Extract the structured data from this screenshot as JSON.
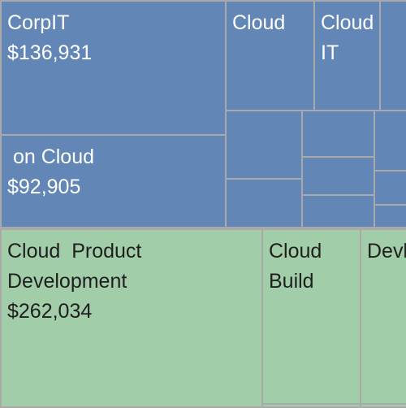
{
  "colors": {
    "it_group": "#6287b6",
    "product_group": "#a1cda8",
    "border": "#a9a9a9"
  },
  "chart_data": {
    "type": "treemap",
    "tiles": [
      {
        "id": "corp-it",
        "group": "it_group",
        "label": "CorpIT",
        "value_text": "$136,931",
        "value": 136931,
        "text_color": "light"
      },
      {
        "id": "on-cloud",
        "group": "it_group",
        "label": " on Cloud",
        "value_text": "$92,905",
        "value": 92905,
        "text_color": "light"
      },
      {
        "id": "cloud-1",
        "group": "it_group",
        "label": "Cloud",
        "value_text": "",
        "text_color": "light"
      },
      {
        "id": "cloud-it",
        "group": "it_group",
        "label": "Cloud\nIT",
        "value_text": "",
        "text_color": "light"
      },
      {
        "id": "it-small-1",
        "group": "it_group",
        "label": "",
        "value_text": ""
      },
      {
        "id": "it-small-2",
        "group": "it_group",
        "label": "",
        "value_text": ""
      },
      {
        "id": "it-small-3",
        "group": "it_group",
        "label": "",
        "value_text": ""
      },
      {
        "id": "it-small-4",
        "group": "it_group",
        "label": "",
        "value_text": ""
      },
      {
        "id": "it-small-5",
        "group": "it_group",
        "label": "",
        "value_text": ""
      },
      {
        "id": "it-small-6",
        "group": "it_group",
        "label": "",
        "value_text": ""
      },
      {
        "id": "it-small-7",
        "group": "it_group",
        "label": "",
        "value_text": ""
      },
      {
        "id": "it-small-8",
        "group": "it_group",
        "label": "",
        "value_text": ""
      },
      {
        "id": "it-small-9",
        "group": "it_group",
        "label": "",
        "value_text": ""
      },
      {
        "id": "it-small-10",
        "group": "it_group",
        "label": "",
        "value_text": ""
      },
      {
        "id": "it-small-11",
        "group": "it_group",
        "label": "",
        "value_text": ""
      },
      {
        "id": "cloud-product-development",
        "group": "product_group",
        "label": "Cloud  Product\nDevelopment",
        "value_text": "$262,034",
        "value": 262034,
        "text_color": "dark"
      },
      {
        "id": "cloud-build",
        "group": "product_group",
        "label": "Cloud\nBuild",
        "value_text": "",
        "text_color": "dark"
      },
      {
        "id": "devl",
        "group": "product_group",
        "label": "Devl",
        "value_text": "",
        "text_color": "dark"
      },
      {
        "id": "product-small-1",
        "group": "product_group",
        "label": "",
        "value_text": ""
      },
      {
        "id": "product-small-2",
        "group": "product_group",
        "label": "",
        "value_text": ""
      }
    ]
  }
}
